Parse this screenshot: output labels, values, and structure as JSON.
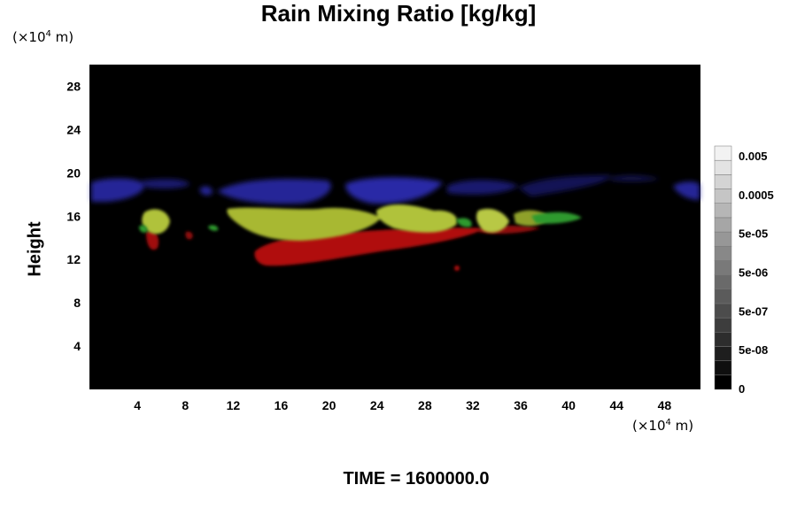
{
  "chart_data": {
    "type": "heatmap",
    "title": "Rain Mixing Ratio [kg/kg]",
    "ylabel": "Height",
    "x_unit": "(×10⁴ m)",
    "y_unit": "(×10⁴ m)",
    "xlim": [
      0,
      51
    ],
    "ylim": [
      0,
      30
    ],
    "xticks": [
      "4",
      "8",
      "12",
      "16",
      "20",
      "24",
      "28",
      "32",
      "36",
      "40",
      "44",
      "48"
    ],
    "yticks": [
      "4",
      "8",
      "12",
      "16",
      "20",
      "24",
      "28"
    ],
    "colorbar": {
      "labels": [
        "0",
        "5e-08",
        "5e-07",
        "5e-06",
        "5e-05",
        "0.0005",
        "0.005"
      ],
      "levels": 17,
      "low_color": "#000000",
      "high_color": "#f2f2f2"
    },
    "background_color": "#000000",
    "layers": [
      {
        "color": "#2b2ba8",
        "y_range": [
          16.5,
          19.5
        ]
      },
      {
        "color": "#b0c23a",
        "y_range": [
          13.5,
          17
        ]
      },
      {
        "color": "#2f9a2f",
        "y_range": [
          14,
          16
        ]
      },
      {
        "color": "#b01010",
        "y_range": [
          11.5,
          14
        ]
      }
    ]
  },
  "footer": "TIME = 1600000.0"
}
